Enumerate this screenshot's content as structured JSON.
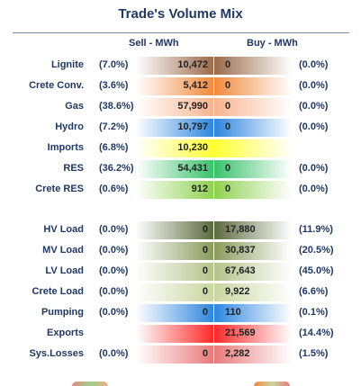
{
  "title": "Trade's Volume Mix",
  "headers": {
    "sell": "Sell - MWh",
    "buy": "Buy - MWh"
  },
  "rows": [
    {
      "label": "Lignite",
      "sell_pct": "(7.0%)",
      "sell": "10,472",
      "buy": "0",
      "buy_pct": "(0.0%)",
      "sell_color": "#9b6b4a",
      "buy_color": "#9b6b4a"
    },
    {
      "label": "Crete Conv.",
      "sell_pct": "(3.6%)",
      "sell": "5,412",
      "buy": "0",
      "buy_pct": "(0.0%)",
      "sell_color": "#f08a3c",
      "buy_color": "#f08a3c"
    },
    {
      "label": "Gas",
      "sell_pct": "(38.6%)",
      "sell": "57,990",
      "buy": "0",
      "buy_pct": "(0.0%)",
      "sell_color": "#f7b48f",
      "buy_color": "#f7b48f"
    },
    {
      "label": "Hydro",
      "sell_pct": "(7.2%)",
      "sell": "10,797",
      "buy": "0",
      "buy_pct": "(0.0%)",
      "sell_color": "#2e86de",
      "buy_color": "#2e86de"
    },
    {
      "label": "Imports",
      "sell_pct": "(6.8%)",
      "sell": "10,230",
      "buy": "",
      "buy_pct": "",
      "sell_color": "#ffff33",
      "buy_color": "#ffff33"
    },
    {
      "label": "RES",
      "sell_pct": "(36.2%)",
      "sell": "54,431",
      "buy": "0",
      "buy_pct": "(0.0%)",
      "sell_color": "#39c26a",
      "buy_color": "#39c26a"
    },
    {
      "label": "Crete RES",
      "sell_pct": "(0.6%)",
      "sell": "912",
      "buy": "0",
      "buy_pct": "(0.0%)",
      "sell_color": "#8fd14f",
      "buy_color": "#8fd14f"
    },
    {
      "label": "HV Load",
      "sell_pct": "(0.0%)",
      "sell": "0",
      "buy": "17,880",
      "buy_pct": "(11.9%)",
      "sell_color": "#5c6a3e",
      "buy_color": "#5c6a3e"
    },
    {
      "label": "MV Load",
      "sell_pct": "(0.0%)",
      "sell": "0",
      "buy": "30,837",
      "buy_pct": "(20.5%)",
      "sell_color": "#8a9a5b",
      "buy_color": "#8a9a5b"
    },
    {
      "label": "LV Load",
      "sell_pct": "(0.0%)",
      "sell": "0",
      "buy": "67,643",
      "buy_pct": "(45.0%)",
      "sell_color": "#b5c28a",
      "buy_color": "#b5c28a"
    },
    {
      "label": "Crete Load",
      "sell_pct": "(0.0%)",
      "sell": "0",
      "buy": "9,922",
      "buy_pct": "(6.6%)",
      "sell_color": "#c9d6a0",
      "buy_color": "#c9d6a0"
    },
    {
      "label": "Pumping",
      "sell_pct": "(0.0%)",
      "sell": "0",
      "buy": "110",
      "buy_pct": "(0.1%)",
      "sell_color": "#2e86de",
      "buy_color": "#2e86de"
    },
    {
      "label": "Exports",
      "sell_pct": "",
      "sell": "",
      "buy": "21,569",
      "buy_pct": "(14.4%)",
      "sell_color": "#ff2a2a",
      "buy_color": "#ff2a2a"
    },
    {
      "label": "Sys.Losses",
      "sell_pct": "(0.0%)",
      "sell": "0",
      "buy": "2,282",
      "buy_pct": "(1.5%)",
      "sell_color": "#e87a7a",
      "buy_color": "#e87a7a"
    }
  ]
}
